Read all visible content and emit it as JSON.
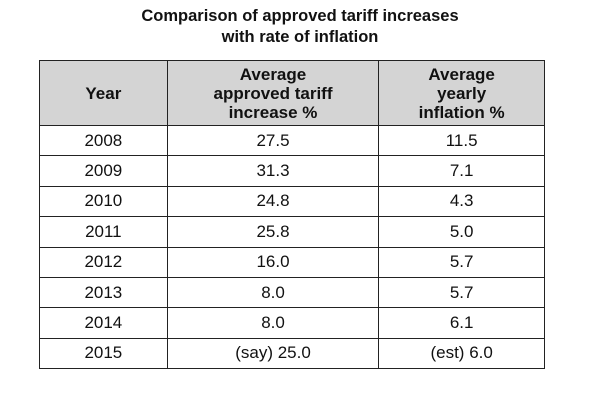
{
  "title": {
    "line1": "Comparison of approved tariff increases",
    "line2": "with rate of inflation"
  },
  "table": {
    "headers": [
      {
        "lines": [
          "Year"
        ]
      },
      {
        "lines": [
          "Average",
          "approved tariff",
          "increase %"
        ]
      },
      {
        "lines": [
          "Average",
          "yearly",
          "inflation %"
        ]
      }
    ],
    "rows": [
      [
        "2008",
        "27.5",
        "11.5"
      ],
      [
        "2009",
        "31.3",
        "7.1"
      ],
      [
        "2010",
        "24.8",
        "4.3"
      ],
      [
        "2011",
        "25.8",
        "5.0"
      ],
      [
        "2012",
        "16.0",
        "5.7"
      ],
      [
        "2013",
        "8.0",
        "5.7"
      ],
      [
        "2014",
        "8.0",
        "6.1"
      ],
      [
        "2015",
        "(say) 25.0",
        "(est) 6.0"
      ]
    ]
  }
}
